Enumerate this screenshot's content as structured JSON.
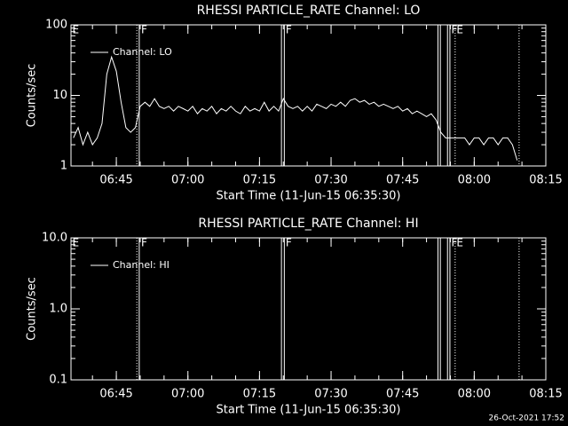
{
  "chart_data": [
    {
      "type": "line",
      "title": "RHESSI PARTICLE_RATE Channel: LO",
      "xlabel": "Start Time (11-Jun-15 06:35:30)",
      "ylabel": "Counts/sec",
      "log_y": true,
      "xlim": [
        395.5,
        495
      ],
      "ylim": [
        1,
        100
      ],
      "xticks": [
        {
          "value": 405,
          "label": "06:45"
        },
        {
          "value": 420,
          "label": "07:00"
        },
        {
          "value": 435,
          "label": "07:15"
        },
        {
          "value": 450,
          "label": "07:30"
        },
        {
          "value": 465,
          "label": "07:45"
        },
        {
          "value": 480,
          "label": "08:00"
        },
        {
          "value": 495,
          "label": "08:15"
        }
      ],
      "yticks": [
        1,
        10,
        100
      ],
      "x": [
        396,
        397,
        398,
        399,
        400,
        401,
        402,
        403,
        404,
        405,
        406,
        407,
        408,
        409,
        410,
        411,
        412,
        413,
        414,
        415,
        416,
        417,
        418,
        419,
        420,
        421,
        422,
        423,
        424,
        425,
        426,
        427,
        428,
        429,
        430,
        431,
        432,
        433,
        434,
        435,
        436,
        437,
        438,
        439,
        440,
        441,
        442,
        443,
        444,
        445,
        446,
        447,
        448,
        449,
        450,
        451,
        452,
        453,
        454,
        455,
        456,
        457,
        458,
        459,
        460,
        461,
        462,
        463,
        464,
        465,
        466,
        467,
        468,
        469,
        470,
        471,
        472,
        473,
        474,
        475,
        476,
        477,
        478,
        479,
        480,
        481,
        482,
        483,
        484,
        485,
        486,
        487,
        488,
        489
      ],
      "series": [
        {
          "name": "Channel: LO",
          "color": "#ffffff",
          "values": [
            2.5,
            3.5,
            2,
            3,
            2,
            2.5,
            4,
            20,
            35,
            22,
            8,
            3.5,
            3,
            3.5,
            7,
            8,
            7,
            9,
            7,
            6.5,
            7,
            6,
            7,
            6.5,
            6,
            7,
            5.5,
            6.5,
            6,
            7,
            5.5,
            6.5,
            6,
            7,
            6,
            5.5,
            7,
            6,
            6.5,
            6,
            8,
            6,
            7,
            6,
            9,
            7,
            6.5,
            7,
            6,
            7,
            6,
            7.5,
            7,
            6.5,
            7.5,
            7,
            8,
            7,
            8.5,
            9,
            8,
            8.5,
            7.5,
            8,
            7,
            7.5,
            7,
            6.5,
            7,
            6,
            6.5,
            5.5,
            6,
            5.5,
            5,
            5.5,
            4.5,
            3,
            2.5,
            2.5,
            2.5,
            2.5,
            2.5,
            2,
            2.5,
            2.5,
            2,
            2.5,
            2.5,
            2,
            2.5,
            2.5,
            2,
            1.2
          ]
        }
      ],
      "markers": [
        {
          "x": 409.3,
          "style": "dotted"
        },
        {
          "x": 409.8,
          "style": "solid"
        },
        {
          "x": 439.6,
          "style": "solid"
        },
        {
          "x": 440.2,
          "style": "solid"
        },
        {
          "x": 472.4,
          "style": "solid"
        },
        {
          "x": 472.9,
          "style": "solid"
        },
        {
          "x": 474.4,
          "style": "solid"
        },
        {
          "x": 474.9,
          "style": "solid"
        },
        {
          "x": 476.0,
          "style": "dotted"
        },
        {
          "x": 489.4,
          "style": "dotted"
        }
      ],
      "marker_labels": [
        {
          "x": 395.6,
          "label": "E"
        },
        {
          "x": 410,
          "label": "F"
        },
        {
          "x": 440.3,
          "label": "F"
        },
        {
          "x": 475,
          "label": "F"
        },
        {
          "x": 476.1,
          "label": "E"
        }
      ]
    },
    {
      "type": "line",
      "title": "RHESSI PARTICLE_RATE Channel: HI",
      "xlabel": "Start Time (11-Jun-15 06:35:30)",
      "ylabel": "Counts/sec",
      "log_y": true,
      "xlim": [
        395.5,
        495
      ],
      "ylim": [
        0.1,
        10
      ],
      "xticks": [
        {
          "value": 405,
          "label": "06:45"
        },
        {
          "value": 420,
          "label": "07:00"
        },
        {
          "value": 435,
          "label": "07:15"
        },
        {
          "value": 450,
          "label": "07:30"
        },
        {
          "value": 465,
          "label": "07:45"
        },
        {
          "value": 480,
          "label": "08:00"
        },
        {
          "value": 495,
          "label": "08:15"
        }
      ],
      "yticks": [
        0.1,
        {
          "value": 1,
          "label": "1.0"
        },
        {
          "value": 10,
          "label": "10.0"
        }
      ],
      "x": [],
      "series": [
        {
          "name": "Channel: HI",
          "color": "#ffffff",
          "values": []
        }
      ],
      "markers": [
        {
          "x": 409.3,
          "style": "dotted"
        },
        {
          "x": 409.8,
          "style": "solid"
        },
        {
          "x": 439.6,
          "style": "solid"
        },
        {
          "x": 440.2,
          "style": "solid"
        },
        {
          "x": 472.4,
          "style": "solid"
        },
        {
          "x": 472.9,
          "style": "solid"
        },
        {
          "x": 474.4,
          "style": "solid"
        },
        {
          "x": 474.9,
          "style": "solid"
        },
        {
          "x": 476.0,
          "style": "dotted"
        },
        {
          "x": 489.4,
          "style": "dotted"
        }
      ],
      "marker_labels": [
        {
          "x": 395.6,
          "label": "E"
        },
        {
          "x": 410,
          "label": "F"
        },
        {
          "x": 440.3,
          "label": "F"
        },
        {
          "x": 475,
          "label": "F"
        },
        {
          "x": 476.1,
          "label": "E"
        }
      ]
    }
  ],
  "footer": "26-Oct-2021 17:52"
}
